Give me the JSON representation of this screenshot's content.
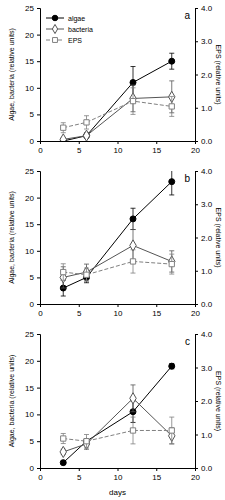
{
  "chart_data": [
    {
      "type": "line",
      "title": "a",
      "legend": "upper left",
      "ylabel": "Algae, bacteria (relative units)",
      "y2label": "EPS (relative units)",
      "x": [
        3,
        6,
        12,
        17
      ],
      "xlim": [
        0,
        20
      ],
      "xticks": [
        0,
        5,
        10,
        15,
        20
      ],
      "ylim": [
        0,
        25
      ],
      "yticks": [
        0,
        5,
        10,
        15,
        20,
        25
      ],
      "y2lim": [
        0,
        4
      ],
      "y2ticks": [
        {
          "value": 0,
          "label": "0.0"
        },
        {
          "value": 1,
          "label": "1.0"
        },
        {
          "value": 2,
          "label": "2.0"
        },
        {
          "value": 3,
          "label": "3.0"
        },
        {
          "value": 4,
          "label": "4.0"
        }
      ],
      "series": [
        {
          "name": "algae",
          "color": "#000000",
          "marker": "circle",
          "line_style": "solid",
          "values": [
            0,
            1,
            11,
            15
          ],
          "errors": [
            0.3,
            0.5,
            3,
            1.5
          ]
        },
        {
          "name": "bacteria",
          "color": "#555555",
          "marker": "open-diamond",
          "line_style": "solid",
          "values": [
            0.3,
            1,
            8,
            8.3
          ],
          "errors": [
            0.3,
            0.5,
            2.5,
            3
          ]
        },
        {
          "name": "EPS",
          "color": "#808080",
          "marker": "open-square",
          "line_style": "dashed",
          "axis": "y2",
          "values": [
            0.4,
            0.56,
            1.2,
            1.04
          ],
          "errors": [
            0.15,
            0.2,
            0.4,
            0.3
          ]
        }
      ]
    },
    {
      "type": "line",
      "title": "b",
      "ylabel": "Algae, bacteria (relative units)",
      "y2label": "EPS (relative units)",
      "x": [
        3,
        6,
        12,
        17
      ],
      "xlim": [
        0,
        20
      ],
      "xticks": [
        0,
        5,
        10,
        15,
        20
      ],
      "ylim": [
        0,
        25
      ],
      "yticks": [
        0,
        5,
        10,
        15,
        20,
        25
      ],
      "y2lim": [
        0,
        4
      ],
      "y2ticks": [
        {
          "value": 0,
          "label": "0.0"
        },
        {
          "value": 1,
          "label": "1.0"
        },
        {
          "value": 2,
          "label": "2.0"
        },
        {
          "value": 3,
          "label": "3.0"
        },
        {
          "value": 4,
          "label": "4.0"
        }
      ],
      "series": [
        {
          "name": "algae",
          "color": "#000000",
          "marker": "circle",
          "line_style": "solid",
          "values": [
            3,
            5,
            16,
            23
          ],
          "errors": [
            1.5,
            1,
            2,
            2.5
          ]
        },
        {
          "name": "bacteria",
          "color": "#555555",
          "marker": "open-diamond",
          "line_style": "solid",
          "values": [
            5,
            6,
            11,
            8
          ],
          "errors": [
            2,
            1.5,
            3,
            2
          ]
        },
        {
          "name": "EPS",
          "color": "#808080",
          "marker": "open-square",
          "line_style": "dashed",
          "axis": "y2",
          "values": [
            0.96,
            0.88,
            1.28,
            1.2
          ],
          "errors": [
            0.25,
            0.2,
            0.35,
            0.3
          ]
        }
      ]
    },
    {
      "type": "line",
      "title": "c",
      "xlabel": "days",
      "ylabel": "Algae, bacteria (relative units)",
      "y2label": "EPS (relative units)",
      "x": [
        3,
        6,
        12,
        17
      ],
      "xlim": [
        0,
        20
      ],
      "xticks": [
        0,
        5,
        10,
        15,
        20
      ],
      "ylim": [
        0,
        25
      ],
      "yticks": [
        0,
        5,
        10,
        15,
        20,
        25
      ],
      "y2lim": [
        0,
        4
      ],
      "y2ticks": [
        {
          "value": 0,
          "label": "0.0"
        },
        {
          "value": 1,
          "label": "1.0"
        },
        {
          "value": 2,
          "label": "2.0"
        },
        {
          "value": 3,
          "label": "3.0"
        },
        {
          "value": 4,
          "label": "4.0"
        }
      ],
      "series": [
        {
          "name": "algae",
          "color": "#000000",
          "marker": "circle",
          "line_style": "solid",
          "values": [
            1,
            5,
            10.5,
            19
          ],
          "errors": [
            0.3,
            0.5,
            2,
            0.5
          ]
        },
        {
          "name": "bacteria",
          "color": "#555555",
          "marker": "open-diamond",
          "line_style": "solid",
          "values": [
            3,
            4.5,
            13,
            6
          ],
          "errors": [
            0.5,
            1,
            2.5,
            1.5
          ]
        },
        {
          "name": "EPS",
          "color": "#808080",
          "marker": "open-square",
          "line_style": "dashed",
          "axis": "y2",
          "values": [
            0.88,
            0.8,
            1.12,
            1.12
          ],
          "errors": [
            0.15,
            0.2,
            0.4,
            0.4
          ]
        }
      ]
    }
  ]
}
